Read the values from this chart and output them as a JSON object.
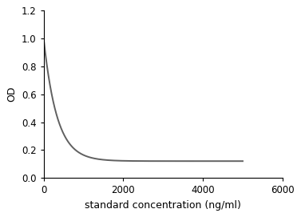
{
  "title": "",
  "xlabel": "standard concentration (ng/ml)",
  "ylabel": "OD",
  "xlim": [
    0,
    6000
  ],
  "ylim": [
    0,
    1.2
  ],
  "xticks": [
    0,
    2000,
    4000,
    6000
  ],
  "yticks": [
    0,
    0.2,
    0.4,
    0.6,
    0.8,
    1.0,
    1.2
  ],
  "line_color": "#606060",
  "line_width": 1.4,
  "background_color": "#ffffff",
  "curve_a": 0.88,
  "curve_b": 0.003,
  "curve_c": 0.12,
  "xlabel_fontsize": 9,
  "ylabel_fontsize": 9,
  "tick_fontsize": 8.5
}
